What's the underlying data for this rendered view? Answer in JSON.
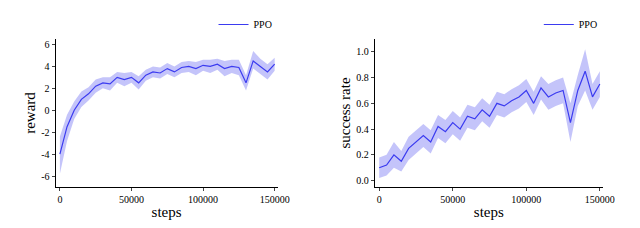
{
  "chart_data": [
    {
      "type": "line",
      "x_label": "steps",
      "y_label": "reward",
      "x": [
        0,
        5000,
        10000,
        15000,
        20000,
        25000,
        30000,
        35000,
        40000,
        45000,
        50000,
        55000,
        60000,
        65000,
        70000,
        75000,
        80000,
        85000,
        90000,
        95000,
        100000,
        105000,
        110000,
        115000,
        120000,
        125000,
        130000,
        135000,
        140000,
        145000,
        150000
      ],
      "series": [
        {
          "name": "PPO",
          "color": "#3b3bf0",
          "values": [
            -4,
            -1.5,
            0,
            1,
            1.5,
            2.2,
            2.5,
            2.4,
            3,
            2.8,
            3,
            2.5,
            3.2,
            3.5,
            3.4,
            3.8,
            3.5,
            3.9,
            4,
            3.8,
            4.1,
            4,
            4.2,
            3.8,
            4,
            3.9,
            2.5,
            4.5,
            4,
            3.5,
            4.2
          ],
          "lower": [
            -5.8,
            -2.8,
            -0.8,
            0.3,
            0.9,
            1.6,
            2,
            1.8,
            2.5,
            2.2,
            2.5,
            1.9,
            2.7,
            3,
            2.9,
            3.3,
            3,
            3.4,
            3.5,
            3.2,
            3.6,
            3.4,
            3.7,
            3.1,
            3.4,
            3.2,
            1.8,
            3.8,
            3.3,
            2.8,
            3.6
          ],
          "upper": [
            -2.4,
            -0.4,
            0.8,
            1.7,
            2.1,
            2.8,
            3,
            3,
            3.5,
            3.4,
            3.5,
            3.1,
            3.7,
            4,
            3.9,
            4.3,
            4,
            4.4,
            4.5,
            4.4,
            4.6,
            4.6,
            4.7,
            4.5,
            4.6,
            4.6,
            3.2,
            5.4,
            4.7,
            4.2,
            4.8
          ]
        }
      ],
      "xlim": [
        -3000,
        152000
      ],
      "xticks": [
        0,
        50000,
        100000,
        150000
      ],
      "ylim": [
        -7,
        6.5
      ],
      "yticks": [
        -6,
        -4,
        -2,
        0,
        2,
        4,
        6
      ],
      "grid": false,
      "legend": "upper right"
    },
    {
      "type": "line",
      "x_label": "steps",
      "y_label": "success rate",
      "x": [
        0,
        5000,
        10000,
        15000,
        20000,
        25000,
        30000,
        35000,
        40000,
        45000,
        50000,
        55000,
        60000,
        65000,
        70000,
        75000,
        80000,
        85000,
        90000,
        95000,
        100000,
        105000,
        110000,
        115000,
        120000,
        125000,
        130000,
        135000,
        140000,
        145000,
        150000
      ],
      "series": [
        {
          "name": "PPO",
          "color": "#3b3bf0",
          "values": [
            0.1,
            0.12,
            0.2,
            0.15,
            0.25,
            0.3,
            0.35,
            0.3,
            0.42,
            0.38,
            0.45,
            0.4,
            0.5,
            0.48,
            0.55,
            0.5,
            0.6,
            0.58,
            0.62,
            0.65,
            0.7,
            0.6,
            0.72,
            0.65,
            0.68,
            0.7,
            0.45,
            0.7,
            0.85,
            0.65,
            0.75
          ],
          "lower": [
            0.02,
            0.04,
            0.1,
            0.07,
            0.16,
            0.21,
            0.26,
            0.21,
            0.33,
            0.29,
            0.36,
            0.31,
            0.41,
            0.39,
            0.46,
            0.41,
            0.51,
            0.49,
            0.53,
            0.56,
            0.61,
            0.51,
            0.63,
            0.55,
            0.58,
            0.6,
            0.3,
            0.58,
            0.7,
            0.55,
            0.65
          ],
          "upper": [
            0.18,
            0.2,
            0.3,
            0.23,
            0.34,
            0.39,
            0.44,
            0.39,
            0.51,
            0.47,
            0.54,
            0.49,
            0.59,
            0.57,
            0.64,
            0.59,
            0.69,
            0.67,
            0.71,
            0.74,
            0.79,
            0.69,
            0.81,
            0.75,
            0.78,
            0.8,
            0.6,
            0.82,
            1.02,
            0.75,
            0.85
          ]
        }
      ],
      "xlim": [
        -3000,
        152000
      ],
      "xticks": [
        0,
        50000,
        100000,
        150000
      ],
      "ylim": [
        -0.05,
        1.1
      ],
      "yticks": [
        {
          "value": 0,
          "label": "0.0"
        },
        0.2,
        0.4,
        0.6,
        0.8,
        {
          "value": 1,
          "label": "1.0"
        }
      ],
      "grid": false,
      "legend": "upper right"
    }
  ]
}
